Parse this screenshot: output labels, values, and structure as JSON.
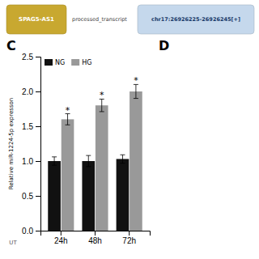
{
  "chart_data": {
    "type": "bar",
    "categories": [
      "24h",
      "48h",
      "72h"
    ],
    "series": [
      {
        "name": "NG",
        "color": "#111111",
        "values": [
          1.0,
          1.0,
          1.03
        ],
        "errors": [
          0.06,
          0.08,
          0.06
        ]
      },
      {
        "name": "HG",
        "color": "#999999",
        "values": [
          1.6,
          1.8,
          2.0
        ],
        "errors": [
          0.08,
          0.09,
          0.1
        ]
      }
    ],
    "ylabel": "Relative miR-1224-5p expresson",
    "ylim": [
      0,
      2.5
    ],
    "yticks": [
      {
        "value": 0,
        "label": "0.0"
      },
      0.5,
      {
        "value": 1,
        "label": "1.0"
      },
      1.5,
      {
        "value": 2,
        "label": "2.0"
      },
      2.5
    ],
    "legend": "upper left",
    "annotations": [
      {
        "text": "SPAG5-AS1",
        "color": "#c8a830"
      },
      {
        "text": "processed_transcript"
      },
      {
        "text": "chr17:26926225-26926245[+]",
        "color": "#c5d8ec"
      },
      {
        "text": "C"
      },
      {
        "text": "D"
      },
      {
        "text": "UT"
      },
      {
        "text": "*",
        "series": "HG",
        "category": "24h"
      },
      {
        "text": "*",
        "series": "HG",
        "category": "48h"
      },
      {
        "text": "*",
        "series": "HG",
        "category": "72h"
      }
    ]
  }
}
